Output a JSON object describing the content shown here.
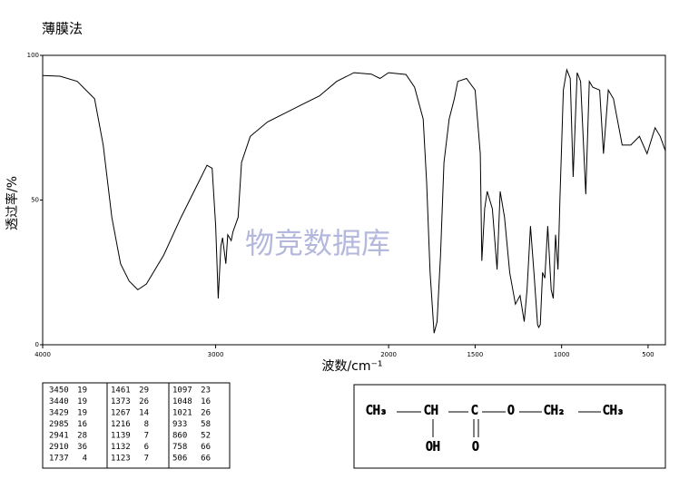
{
  "title": "薄膜法",
  "watermark": "物竞数据库",
  "chart_data": {
    "type": "line",
    "color": "#000000",
    "x_label": "波数/cm⁻¹",
    "y_label": "透过率/%",
    "xlim": [
      4000,
      400
    ],
    "ylim": [
      0,
      100
    ],
    "xticks": [
      4000,
      3000,
      2000,
      1500,
      1000,
      500
    ],
    "yticks": [
      0,
      50,
      100
    ],
    "x": [
      4000,
      3900,
      3800,
      3700,
      3650,
      3600,
      3550,
      3500,
      3450,
      3400,
      3300,
      3200,
      3100,
      3050,
      3020,
      3000,
      2985,
      2970,
      2960,
      2941,
      2930,
      2910,
      2900,
      2870,
      2850,
      2800,
      2700,
      2600,
      2500,
      2400,
      2300,
      2200,
      2100,
      2050,
      2000,
      1900,
      1850,
      1800,
      1780,
      1760,
      1737,
      1720,
      1700,
      1680,
      1650,
      1620,
      1600,
      1550,
      1500,
      1470,
      1461,
      1445,
      1430,
      1400,
      1373,
      1355,
      1330,
      1300,
      1267,
      1240,
      1216,
      1200,
      1180,
      1160,
      1139,
      1132,
      1123,
      1110,
      1097,
      1080,
      1060,
      1048,
      1035,
      1021,
      1010,
      990,
      970,
      950,
      933,
      910,
      890,
      860,
      840,
      820,
      780,
      758,
      730,
      700,
      650,
      600,
      550,
      506,
      460,
      430,
      400
    ],
    "values": [
      93,
      92.8,
      91,
      85,
      69,
      44,
      28,
      22,
      19,
      21,
      31,
      44,
      56,
      62,
      61,
      41,
      16,
      34,
      37,
      28,
      38,
      36,
      39,
      44,
      63,
      72,
      77,
      80,
      83,
      86,
      91,
      94,
      93.5,
      92,
      94,
      93.4,
      89,
      78,
      56,
      25,
      4,
      8,
      31,
      63,
      78,
      85,
      91,
      92,
      88,
      66,
      29,
      47,
      53,
      47,
      26,
      53,
      44,
      25,
      14,
      17,
      8,
      19,
      41,
      25,
      7,
      6,
      7,
      25,
      23,
      41,
      19,
      16,
      38,
      26,
      50,
      88,
      95,
      92,
      58,
      94,
      91,
      52,
      91,
      89,
      88,
      66,
      88,
      85,
      69,
      69,
      72,
      66,
      75,
      72,
      67
    ]
  },
  "peak_table": {
    "columns": [
      [
        [
          "3450",
          "19"
        ],
        [
          "3440",
          "19"
        ],
        [
          "3429",
          "19"
        ],
        [
          "2985",
          "16"
        ],
        [
          "2941",
          "28"
        ],
        [
          "2910",
          "36"
        ],
        [
          "1737",
          "4"
        ]
      ],
      [
        [
          "1461",
          "29"
        ],
        [
          "1373",
          "26"
        ],
        [
          "1267",
          "14"
        ],
        [
          "1216",
          "8"
        ],
        [
          "1139",
          "7"
        ],
        [
          "1132",
          "6"
        ],
        [
          "1123",
          "7"
        ]
      ],
      [
        [
          "1097",
          "23"
        ],
        [
          "1048",
          "16"
        ],
        [
          "1021",
          "26"
        ],
        [
          "933",
          "58"
        ],
        [
          "860",
          "52"
        ],
        [
          "758",
          "66"
        ],
        [
          "506",
          "66"
        ]
      ]
    ]
  },
  "structure": {
    "labels": [
      "CH₃",
      "CH",
      "C",
      "O",
      "CH₂",
      "CH₃",
      "OH",
      "O"
    ]
  }
}
